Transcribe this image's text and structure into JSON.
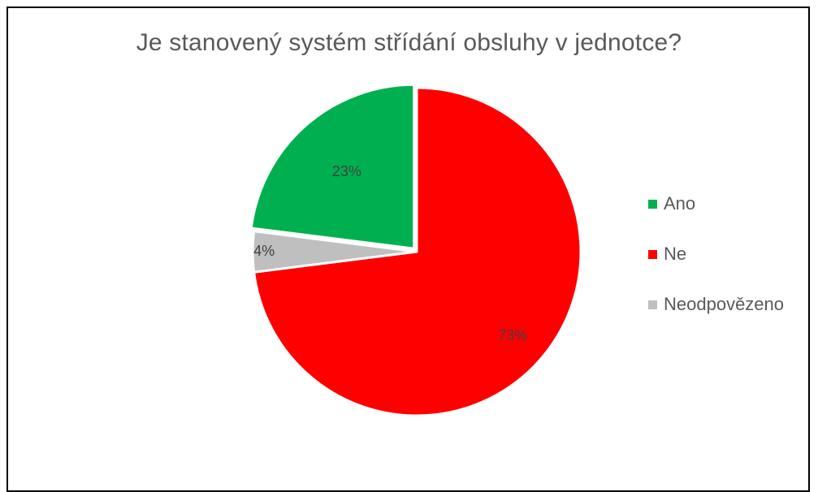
{
  "chart_data": {
    "type": "pie",
    "title": "Je stanovený systém střídání obsluhy v jednotce?",
    "categories": [
      "Ano",
      "Ne",
      "Neodpovězeno"
    ],
    "values": [
      23,
      73,
      4
    ],
    "labels": [
      "23%",
      "73%",
      "4%"
    ],
    "colors": [
      "#00B050",
      "#FF0000",
      "#BFBFBF"
    ],
    "legend_position": "right"
  }
}
